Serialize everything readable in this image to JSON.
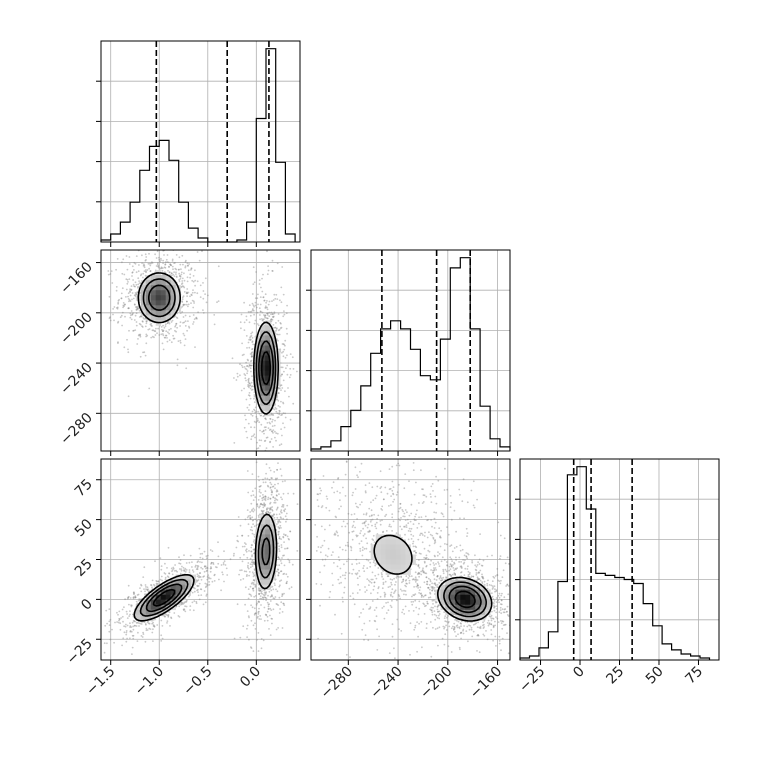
{
  "chart_data": {
    "type": "corner",
    "colors": {
      "line": "#000000",
      "grid": "#b0b0b0",
      "points": "#888888"
    },
    "grid": true,
    "parameters": [
      {
        "range": [
          -1.6,
          0.45
        ],
        "ticks": [
          -1.5,
          -1.0,
          -0.5,
          0.0
        ],
        "tick_labels": [
          "−1.5",
          "−1.0",
          "−0.5",
          "0.0"
        ]
      },
      {
        "range": [
          -310,
          -150
        ],
        "ticks": [
          -280,
          -240,
          -200,
          -160
        ],
        "tick_labels": [
          "−280",
          "−240",
          "−200",
          "−160"
        ]
      },
      {
        "range": [
          -38,
          88
        ],
        "ticks": [
          -25,
          0,
          25,
          50,
          75
        ],
        "tick_labels": [
          "−25",
          "0",
          "25",
          "50",
          "75"
        ]
      }
    ],
    "histograms": [
      {
        "bin_edges": [
          -1.6,
          -1.5,
          -1.4,
          -1.3,
          -1.2,
          -1.1,
          -1.0,
          -0.9,
          -0.8,
          -0.7,
          -0.6,
          -0.5,
          -0.4,
          -0.3,
          -0.2,
          -0.1,
          0.0,
          0.1,
          0.2,
          0.3,
          0.4
        ],
        "counts": [
          0.01,
          0.04,
          0.1,
          0.2,
          0.36,
          0.48,
          0.51,
          0.41,
          0.2,
          0.07,
          0.02,
          0.0,
          0.0,
          0.0,
          0.01,
          0.1,
          0.62,
          0.97,
          0.4,
          0.04
        ],
        "quantiles": [
          -1.03,
          -0.3,
          0.13
        ]
      },
      {
        "bin_edges": [
          -310,
          -302,
          -294,
          -286,
          -278,
          -270,
          -262,
          -254,
          -246,
          -238,
          -230,
          -222,
          -214,
          -206,
          -198,
          -190,
          -182,
          -174,
          -166,
          -158,
          -150
        ],
        "counts": [
          0.01,
          0.02,
          0.05,
          0.12,
          0.2,
          0.32,
          0.48,
          0.6,
          0.64,
          0.6,
          0.5,
          0.37,
          0.35,
          0.55,
          0.9,
          0.95,
          0.6,
          0.22,
          0.06,
          0.02
        ],
        "quantiles": [
          -253,
          -209,
          -182
        ]
      },
      {
        "bin_edges": [
          -38,
          -32,
          -26,
          -20,
          -14,
          -8,
          -2,
          4,
          10,
          16,
          22,
          28,
          34,
          40,
          46,
          52,
          58,
          64,
          70,
          76,
          82
        ],
        "counts": [
          0.01,
          0.02,
          0.06,
          0.14,
          0.39,
          0.92,
          0.96,
          0.75,
          0.43,
          0.42,
          0.41,
          0.4,
          0.38,
          0.28,
          0.17,
          0.08,
          0.05,
          0.03,
          0.02,
          0.01
        ],
        "quantiles": [
          -4,
          7,
          33
        ]
      }
    ],
    "pairs": [
      {
        "row": 1,
        "col": 0,
        "clusters": [
          {
            "center": [
              -1.0,
              -188
            ],
            "sd": [
              0.12,
              11
            ],
            "rho": 0.0,
            "weight": 0.5,
            "peak": 0.75
          },
          {
            "center": [
              0.1,
              -244
            ],
            "sd": [
              0.065,
              19
            ],
            "rho": 0.0,
            "weight": 0.5,
            "peak": 0.95
          }
        ]
      },
      {
        "row": 2,
        "col": 0,
        "clusters": [
          {
            "center": [
              -0.95,
              1
            ],
            "sd": [
              0.16,
              7.5
            ],
            "rho": 0.75,
            "weight": 0.5,
            "peak": 0.95
          },
          {
            "center": [
              0.1,
              30
            ],
            "sd": [
              0.065,
              14
            ],
            "rho": 0.1,
            "weight": 0.5,
            "peak": 0.6
          }
        ]
      },
      {
        "row": 2,
        "col": 1,
        "clusters": [
          {
            "center": [
              -244,
              28
            ],
            "sd": [
              20,
              16
            ],
            "rho": -0.2,
            "weight": 0.5,
            "peak": 0.2
          },
          {
            "center": [
              -186,
              0
            ],
            "sd": [
              11,
              7
            ],
            "rho": -0.2,
            "weight": 0.5,
            "peak": 0.97
          }
        ]
      }
    ]
  }
}
